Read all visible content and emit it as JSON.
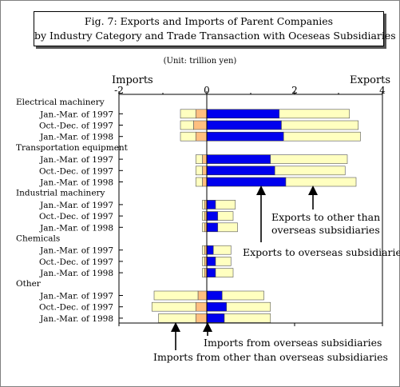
{
  "title": {
    "line1": "Fig. 7: Exports and Imports of Parent Companies",
    "line2": "by Industry Category and Trade Transaction with Oceseas Subsidiaries"
  },
  "unit": "(Unit: trillion yen)",
  "side_labels": {
    "left": "Imports",
    "right": "Exports"
  },
  "annotations": {
    "exports_other": [
      "Exports to other than",
      "overseas subsidiaries"
    ],
    "exports_subs": "Exports to overseas subsidiaries",
    "imports_subs": "Imports from overseas subsidiaries",
    "imports_other": "Imports from other than overseas subsidiaries"
  },
  "colors": {
    "exports_subsidiaries": "#0000ee",
    "exports_other": "#ffffc0",
    "imports_subsidiaries": "#ffbf80",
    "imports_other": "#ffffc0"
  },
  "chart_data": {
    "type": "bar",
    "orientation": "horizontal",
    "stacked": true,
    "xlim": [
      -2,
      4
    ],
    "x_ticks": [
      "-2",
      "0",
      "2",
      "4"
    ],
    "groups": [
      {
        "name": "Electrical machinery",
        "rows": [
          {
            "label": "Jan.-Mar. of 1997",
            "imports_subsidiaries": 0.25,
            "imports_other": 0.35,
            "exports_subsidiaries": 1.65,
            "exports_other": 1.6
          },
          {
            "label": "Oct.-Dec. of 1997",
            "imports_subsidiaries": 0.3,
            "imports_other": 0.3,
            "exports_subsidiaries": 1.7,
            "exports_other": 1.75
          },
          {
            "label": "Jan.-Mar. of 1998",
            "imports_subsidiaries": 0.25,
            "imports_other": 0.35,
            "exports_subsidiaries": 1.75,
            "exports_other": 1.75
          }
        ]
      },
      {
        "name": "Transportation equipment",
        "rows": [
          {
            "label": "Jan.-Mar. of 1997",
            "imports_subsidiaries": 0.1,
            "imports_other": 0.15,
            "exports_subsidiaries": 1.45,
            "exports_other": 1.75
          },
          {
            "label": "Oct.-Dec. of 1997",
            "imports_subsidiaries": 0.1,
            "imports_other": 0.15,
            "exports_subsidiaries": 1.55,
            "exports_other": 1.6
          },
          {
            "label": "Jan.-Mar. of 1998",
            "imports_subsidiaries": 0.1,
            "imports_other": 0.15,
            "exports_subsidiaries": 1.8,
            "exports_other": 1.6
          }
        ]
      },
      {
        "name": "Industrial machinery",
        "rows": [
          {
            "label": "Jan.-Mar. of 1997",
            "imports_subsidiaries": 0.05,
            "imports_other": 0.05,
            "exports_subsidiaries": 0.2,
            "exports_other": 0.45
          },
          {
            "label": "Oct.-Dec. of 1997",
            "imports_subsidiaries": 0.05,
            "imports_other": 0.05,
            "exports_subsidiaries": 0.25,
            "exports_other": 0.35
          },
          {
            "label": "Jan.-Mar. of 1998",
            "imports_subsidiaries": 0.05,
            "imports_other": 0.05,
            "exports_subsidiaries": 0.25,
            "exports_other": 0.45
          }
        ]
      },
      {
        "name": "Chemicals",
        "rows": [
          {
            "label": "Jan.-Mar. of 1997",
            "imports_subsidiaries": 0.05,
            "imports_other": 0.05,
            "exports_subsidiaries": 0.15,
            "exports_other": 0.4
          },
          {
            "label": "Oct.-Dec. of 1997",
            "imports_subsidiaries": 0.05,
            "imports_other": 0.05,
            "exports_subsidiaries": 0.2,
            "exports_other": 0.35
          },
          {
            "label": "Jan.-Mar. of 1998",
            "imports_subsidiaries": 0.05,
            "imports_other": 0.05,
            "exports_subsidiaries": 0.2,
            "exports_other": 0.4
          }
        ]
      },
      {
        "name": "Other",
        "rows": [
          {
            "label": "Jan.-Mar. of 1997",
            "imports_subsidiaries": 0.2,
            "imports_other": 1.0,
            "exports_subsidiaries": 0.35,
            "exports_other": 0.95
          },
          {
            "label": "Oct.-Dec. of 1997",
            "imports_subsidiaries": 0.25,
            "imports_other": 1.0,
            "exports_subsidiaries": 0.45,
            "exports_other": 1.0
          },
          {
            "label": "Jan.-Mar. of 1998",
            "imports_subsidiaries": 0.25,
            "imports_other": 0.85,
            "exports_subsidiaries": 0.4,
            "exports_other": 1.05
          }
        ]
      }
    ]
  }
}
